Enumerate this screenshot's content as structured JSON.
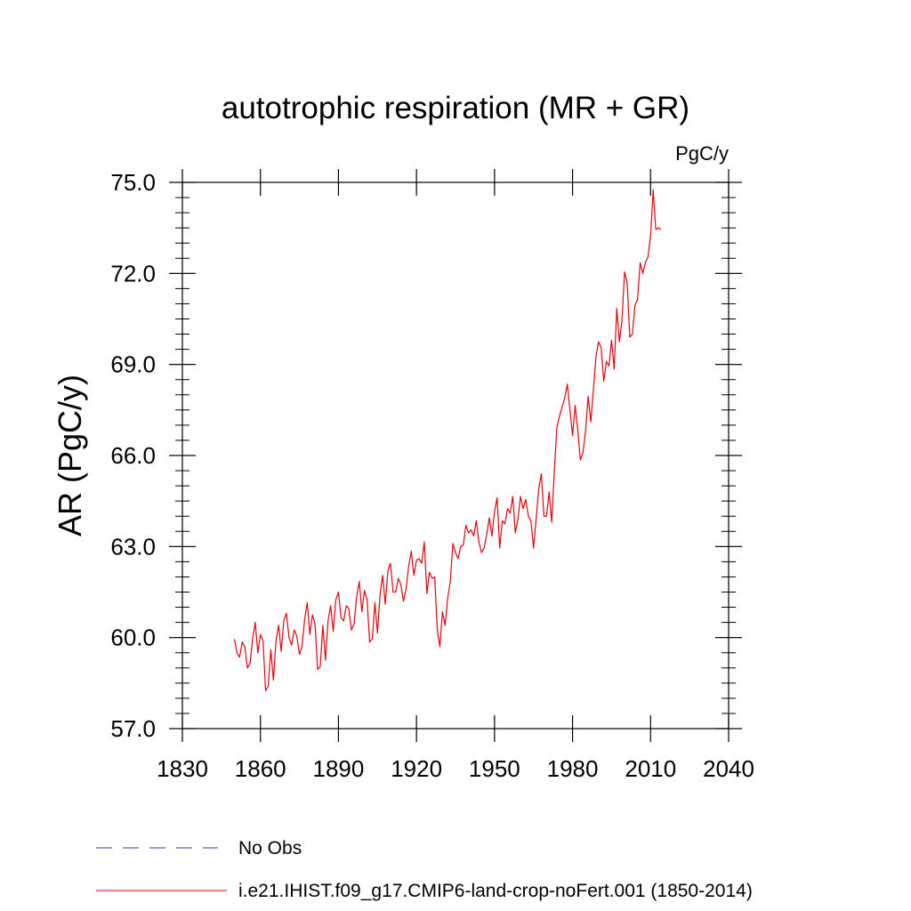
{
  "chart_data": {
    "type": "line",
    "title": "autotrophic respiration (MR + GR)",
    "units_label": "PgC/y",
    "ylabel": "AR  (PgC/y)",
    "xlabel": "",
    "xlim": [
      1830,
      2040
    ],
    "ylim": [
      57.0,
      75.0
    ],
    "x_ticks": [
      1830,
      1860,
      1890,
      1920,
      1950,
      1980,
      2010,
      2040
    ],
    "x_tick_labels": [
      "1830",
      "1860",
      "1890",
      "1920",
      "1950",
      "1980",
      "2010",
      "2040"
    ],
    "y_ticks": [
      57,
      60,
      63,
      66,
      69,
      72,
      75
    ],
    "y_tick_labels": [
      "57.0",
      "60.0",
      "63.0",
      "66.0",
      "69.0",
      "72.0",
      "75.0"
    ],
    "grid": false,
    "legend": {
      "placement": "bottom"
    },
    "series": [
      {
        "name": "No Obs",
        "color": "#6a5acd",
        "style": "dashed",
        "x": [],
        "y": []
      },
      {
        "name": "i.e21.IHIST.f09_g17.CMIP6-land-crop-noFert.001 (1850-2014)",
        "color": "#e8000b",
        "style": "solid",
        "x": [
          1850,
          1851,
          1852,
          1853,
          1854,
          1855,
          1856,
          1857,
          1858,
          1859,
          1860,
          1861,
          1862,
          1863,
          1864,
          1865,
          1866,
          1867,
          1868,
          1869,
          1870,
          1871,
          1872,
          1873,
          1874,
          1875,
          1876,
          1877,
          1878,
          1879,
          1880,
          1881,
          1882,
          1883,
          1884,
          1885,
          1886,
          1887,
          1888,
          1889,
          1890,
          1891,
          1892,
          1893,
          1894,
          1895,
          1896,
          1897,
          1898,
          1899,
          1900,
          1901,
          1902,
          1903,
          1904,
          1905,
          1906,
          1907,
          1908,
          1909,
          1910,
          1911,
          1912,
          1913,
          1914,
          1915,
          1916,
          1917,
          1918,
          1919,
          1920,
          1921,
          1922,
          1923,
          1924,
          1925,
          1926,
          1927,
          1928,
          1929,
          1930,
          1931,
          1932,
          1933,
          1934,
          1935,
          1936,
          1937,
          1938,
          1939,
          1940,
          1941,
          1942,
          1943,
          1944,
          1945,
          1946,
          1947,
          1948,
          1949,
          1950,
          1951,
          1952,
          1953,
          1954,
          1955,
          1956,
          1957,
          1958,
          1959,
          1960,
          1961,
          1962,
          1963,
          1964,
          1965,
          1966,
          1967,
          1968,
          1969,
          1970,
          1971,
          1972,
          1973,
          1974,
          1975,
          1976,
          1977,
          1978,
          1979,
          1980,
          1981,
          1982,
          1983,
          1984,
          1985,
          1986,
          1987,
          1988,
          1989,
          1990,
          1991,
          1992,
          1993,
          1994,
          1995,
          1996,
          1997,
          1998,
          1999,
          2000,
          2001,
          2002,
          2003,
          2004,
          2005,
          2006,
          2007,
          2008,
          2009,
          2010,
          2011,
          2012,
          2013,
          2014
        ],
        "y": [
          59.95,
          59.5,
          59.35,
          59.85,
          59.7,
          59.0,
          59.15,
          59.95,
          60.5,
          59.5,
          60.1,
          59.9,
          58.25,
          58.4,
          59.6,
          58.6,
          59.9,
          60.4,
          59.55,
          60.55,
          60.8,
          60.0,
          59.75,
          60.25,
          60.05,
          59.45,
          59.7,
          60.6,
          61.15,
          60.1,
          60.75,
          60.45,
          58.95,
          59.05,
          60.4,
          59.25,
          60.55,
          61.05,
          60.2,
          61.25,
          61.5,
          60.65,
          60.55,
          61.05,
          60.95,
          60.25,
          60.45,
          61.35,
          61.85,
          60.85,
          61.55,
          61.25,
          59.85,
          59.95,
          61.15,
          60.15,
          61.4,
          62.05,
          61.1,
          62.2,
          62.45,
          61.5,
          61.5,
          61.95,
          61.75,
          61.2,
          61.6,
          62.35,
          62.85,
          62.05,
          62.55,
          62.6,
          62.45,
          63.15,
          61.45,
          62.15,
          61.95,
          62.0,
          60.25,
          59.7,
          60.85,
          60.4,
          61.3,
          61.85,
          63.1,
          62.8,
          62.6,
          63.0,
          63.05,
          63.7,
          63.45,
          63.55,
          63.35,
          63.85,
          63.15,
          62.8,
          62.95,
          63.4,
          63.95,
          63.35,
          64.15,
          64.6,
          62.95,
          63.85,
          63.75,
          64.25,
          64.1,
          64.65,
          63.45,
          63.9,
          64.65,
          64.25,
          64.55,
          64.0,
          63.85,
          62.95,
          63.9,
          64.9,
          65.4,
          64.0,
          64.0,
          64.8,
          63.8,
          65.5,
          66.95,
          67.3,
          67.6,
          67.9,
          68.35,
          67.5,
          66.65,
          67.65,
          66.85,
          65.85,
          66.1,
          66.8,
          67.95,
          67.1,
          68.15,
          69.25,
          69.75,
          69.55,
          68.45,
          69.1,
          68.95,
          69.8,
          68.85,
          70.85,
          69.75,
          70.45,
          72.05,
          71.7,
          69.9,
          70.0,
          70.95,
          71.15,
          72.35,
          72.0,
          72.35,
          72.55,
          73.25,
          74.75,
          73.45,
          73.5,
          73.45
        ]
      }
    ]
  }
}
